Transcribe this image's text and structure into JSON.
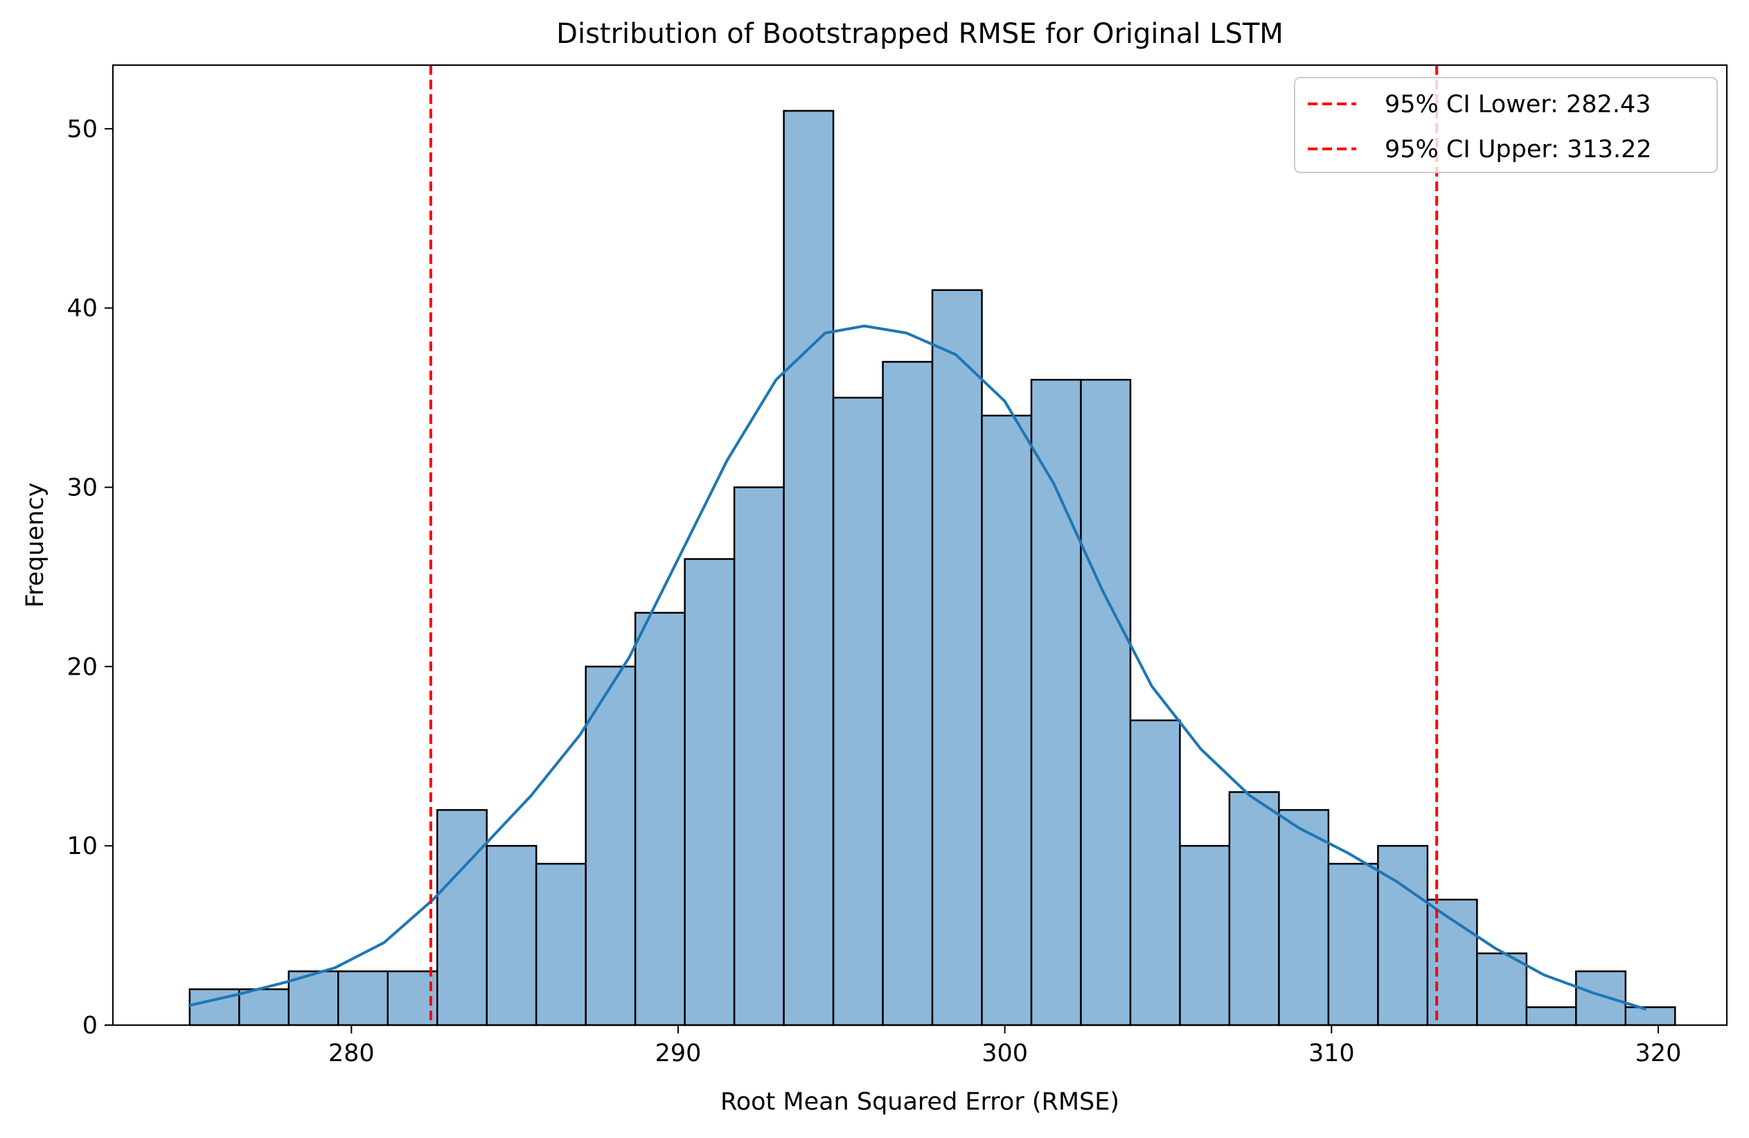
{
  "chart_data": {
    "type": "bar",
    "title": "Distribution of Bootstrapped RMSE for Original LSTM",
    "xlabel": "Root Mean Squared Error (RMSE)",
    "ylabel": "Frequency",
    "xlim": [
      272.7,
      322.1
    ],
    "ylim": [
      0,
      53.55
    ],
    "xticks": [
      280,
      290,
      300,
      310,
      320
    ],
    "yticks": [
      0,
      10,
      20,
      30,
      40,
      50
    ],
    "grid": false,
    "legend_position": "top-right",
    "bar_fill": "#8db8da",
    "bar_edge": "#000000",
    "kde_color": "#1f77b4",
    "ci_color": "#ff0000",
    "histogram": {
      "bin_start": 275.05,
      "bin_width": 1.5155,
      "counts": [
        2,
        2,
        3,
        3,
        3,
        12,
        10,
        9,
        20,
        23,
        26,
        30,
        51,
        35,
        37,
        41,
        34,
        36,
        36,
        17,
        10,
        13,
        12,
        9,
        10,
        7,
        4,
        1,
        3,
        1
      ]
    },
    "kde": {
      "name": "",
      "x": [
        275.05,
        276.5,
        278.0,
        279.5,
        281.0,
        282.5,
        284.0,
        285.5,
        287.0,
        288.5,
        290.0,
        291.5,
        293.0,
        294.5,
        295.7,
        297.0,
        298.5,
        300.0,
        301.5,
        303.0,
        304.5,
        306.0,
        307.5,
        309.0,
        310.5,
        312.0,
        313.5,
        315.0,
        316.5,
        318.0,
        319.6
      ],
      "y": [
        1.1,
        1.7,
        2.4,
        3.2,
        4.6,
        7.0,
        9.9,
        12.8,
        16.2,
        20.5,
        26.0,
        31.5,
        36.0,
        38.6,
        39.0,
        38.6,
        37.4,
        34.8,
        30.2,
        24.2,
        18.9,
        15.4,
        12.8,
        11.0,
        9.6,
        8.0,
        6.1,
        4.3,
        2.8,
        1.8,
        0.9
      ]
    },
    "ci_lines": [
      {
        "name": "95% CI Lower: 282.43",
        "x": 282.43
      },
      {
        "name": "95% CI Upper: 313.22",
        "x": 313.22
      }
    ]
  }
}
